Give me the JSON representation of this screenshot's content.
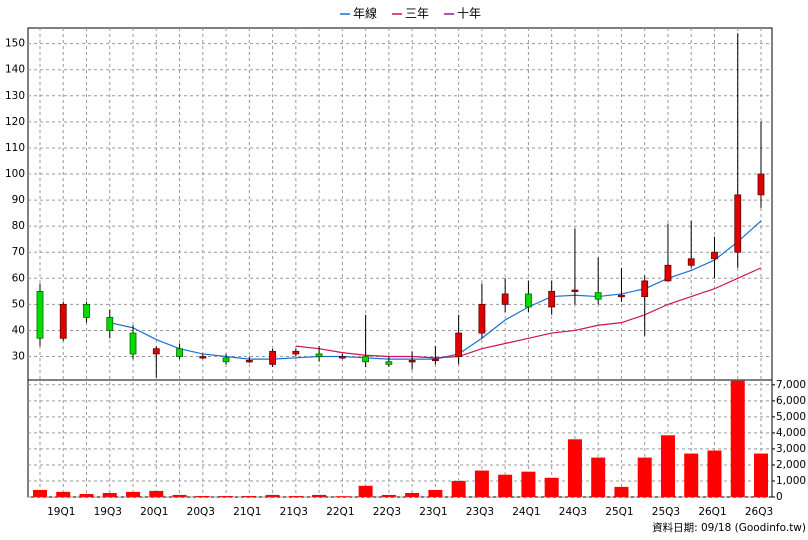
{
  "chart_data": {
    "type": "candlestick",
    "categories": [
      null,
      "19Q1",
      null,
      "19Q3",
      null,
      "20Q1",
      null,
      "20Q3",
      null,
      "21Q1",
      null,
      "21Q3",
      null,
      "22Q1",
      null,
      "22Q3",
      null,
      "23Q1",
      null,
      "23Q3",
      null,
      "24Q1",
      null,
      "24Q3",
      null,
      "25Q1",
      null,
      "25Q3",
      null,
      "26Q1",
      null,
      "26Q3"
    ],
    "open": [
      55,
      37,
      50,
      45,
      39,
      31,
      33,
      30,
      29.5,
      28.5,
      27,
      31,
      31,
      30,
      30,
      28,
      28.5,
      29,
      30,
      39,
      50,
      54,
      49,
      55,
      54.5,
      53,
      53,
      59,
      65,
      67.5,
      70,
      92
    ],
    "high": [
      58,
      51,
      51,
      48,
      42,
      34,
      35,
      31,
      31,
      30,
      33,
      33,
      34,
      31,
      46,
      30,
      32,
      34,
      46,
      58,
      60,
      59,
      59,
      79,
      68,
      64,
      61,
      81,
      82,
      76,
      154,
      120
    ],
    "low": [
      34,
      36,
      43,
      37,
      29,
      22,
      29,
      29,
      27,
      27.5,
      26,
      30,
      28,
      29,
      26,
      26,
      25,
      27,
      27,
      37,
      47,
      47,
      46,
      50,
      50,
      51,
      38,
      59,
      64,
      60,
      64,
      87
    ],
    "close": [
      37,
      50,
      45,
      40,
      31,
      33,
      30,
      30,
      28,
      28.5,
      32,
      32,
      30,
      30,
      28,
      27,
      28.5,
      29,
      39,
      50,
      54,
      49,
      55,
      55.5,
      52,
      53.5,
      59,
      65,
      67.5,
      70,
      92,
      100
    ],
    "up_color": "#e00000",
    "down_color": "#00dd00",
    "series": [
      {
        "name": "年線",
        "color": "#1a6fd6",
        "values": [
          null,
          null,
          null,
          43,
          41,
          36.5,
          33,
          31,
          30,
          29,
          29,
          29.5,
          30,
          30,
          29.5,
          29,
          29,
          29,
          31,
          37,
          44,
          49,
          53,
          53.5,
          53,
          54,
          56,
          60,
          63,
          67,
          74,
          82
        ]
      },
      {
        "name": "三年",
        "color": "#d0105a",
        "values": [
          null,
          null,
          null,
          null,
          null,
          null,
          null,
          null,
          null,
          null,
          null,
          34,
          33,
          31.5,
          30.5,
          30,
          30,
          29.5,
          30,
          33,
          35,
          37,
          39,
          40,
          42,
          43,
          46,
          50,
          53,
          56,
          60,
          64
        ]
      },
      {
        "name": "十年",
        "color": "#8b1a8b",
        "values": [
          null,
          null,
          null,
          null,
          null,
          null,
          null,
          null,
          null,
          null,
          null,
          null,
          null,
          null,
          null,
          null,
          null,
          null,
          null,
          null,
          null,
          null,
          null,
          null,
          null,
          null,
          null,
          null,
          null,
          null,
          null,
          null
        ]
      }
    ],
    "volume": {
      "color": "#ff0000",
      "axis": "y2",
      "values": [
        440,
        320,
        190,
        250,
        320,
        380,
        130,
        60,
        60,
        60,
        130,
        60,
        130,
        50,
        700,
        130,
        250,
        440,
        1000,
        1650,
        1390,
        1580,
        1200,
        3600,
        2460,
        630,
        2460,
        3850,
        2710,
        2900,
        7250,
        2710
      ]
    },
    "ylim": [
      21,
      156
    ],
    "yticks": [
      30,
      40,
      50,
      60,
      70,
      80,
      90,
      100,
      110,
      120,
      130,
      140,
      150
    ],
    "y2lim": [
      0,
      7300
    ],
    "y2ticks": [
      0,
      {
        "value": 1000,
        "label": "1,000"
      },
      {
        "value": 2000,
        "label": "2,000"
      },
      {
        "value": 3000,
        "label": "3,000"
      },
      {
        "value": 4000,
        "label": "4,000"
      },
      {
        "value": 5000,
        "label": "5,000"
      },
      {
        "value": 6000,
        "label": "6,000"
      },
      {
        "value": 7000,
        "label": "7,000"
      }
    ],
    "grid": true,
    "legend": "top",
    "footer": "資料日期: 09/18 (Goodinfo.tw)"
  }
}
